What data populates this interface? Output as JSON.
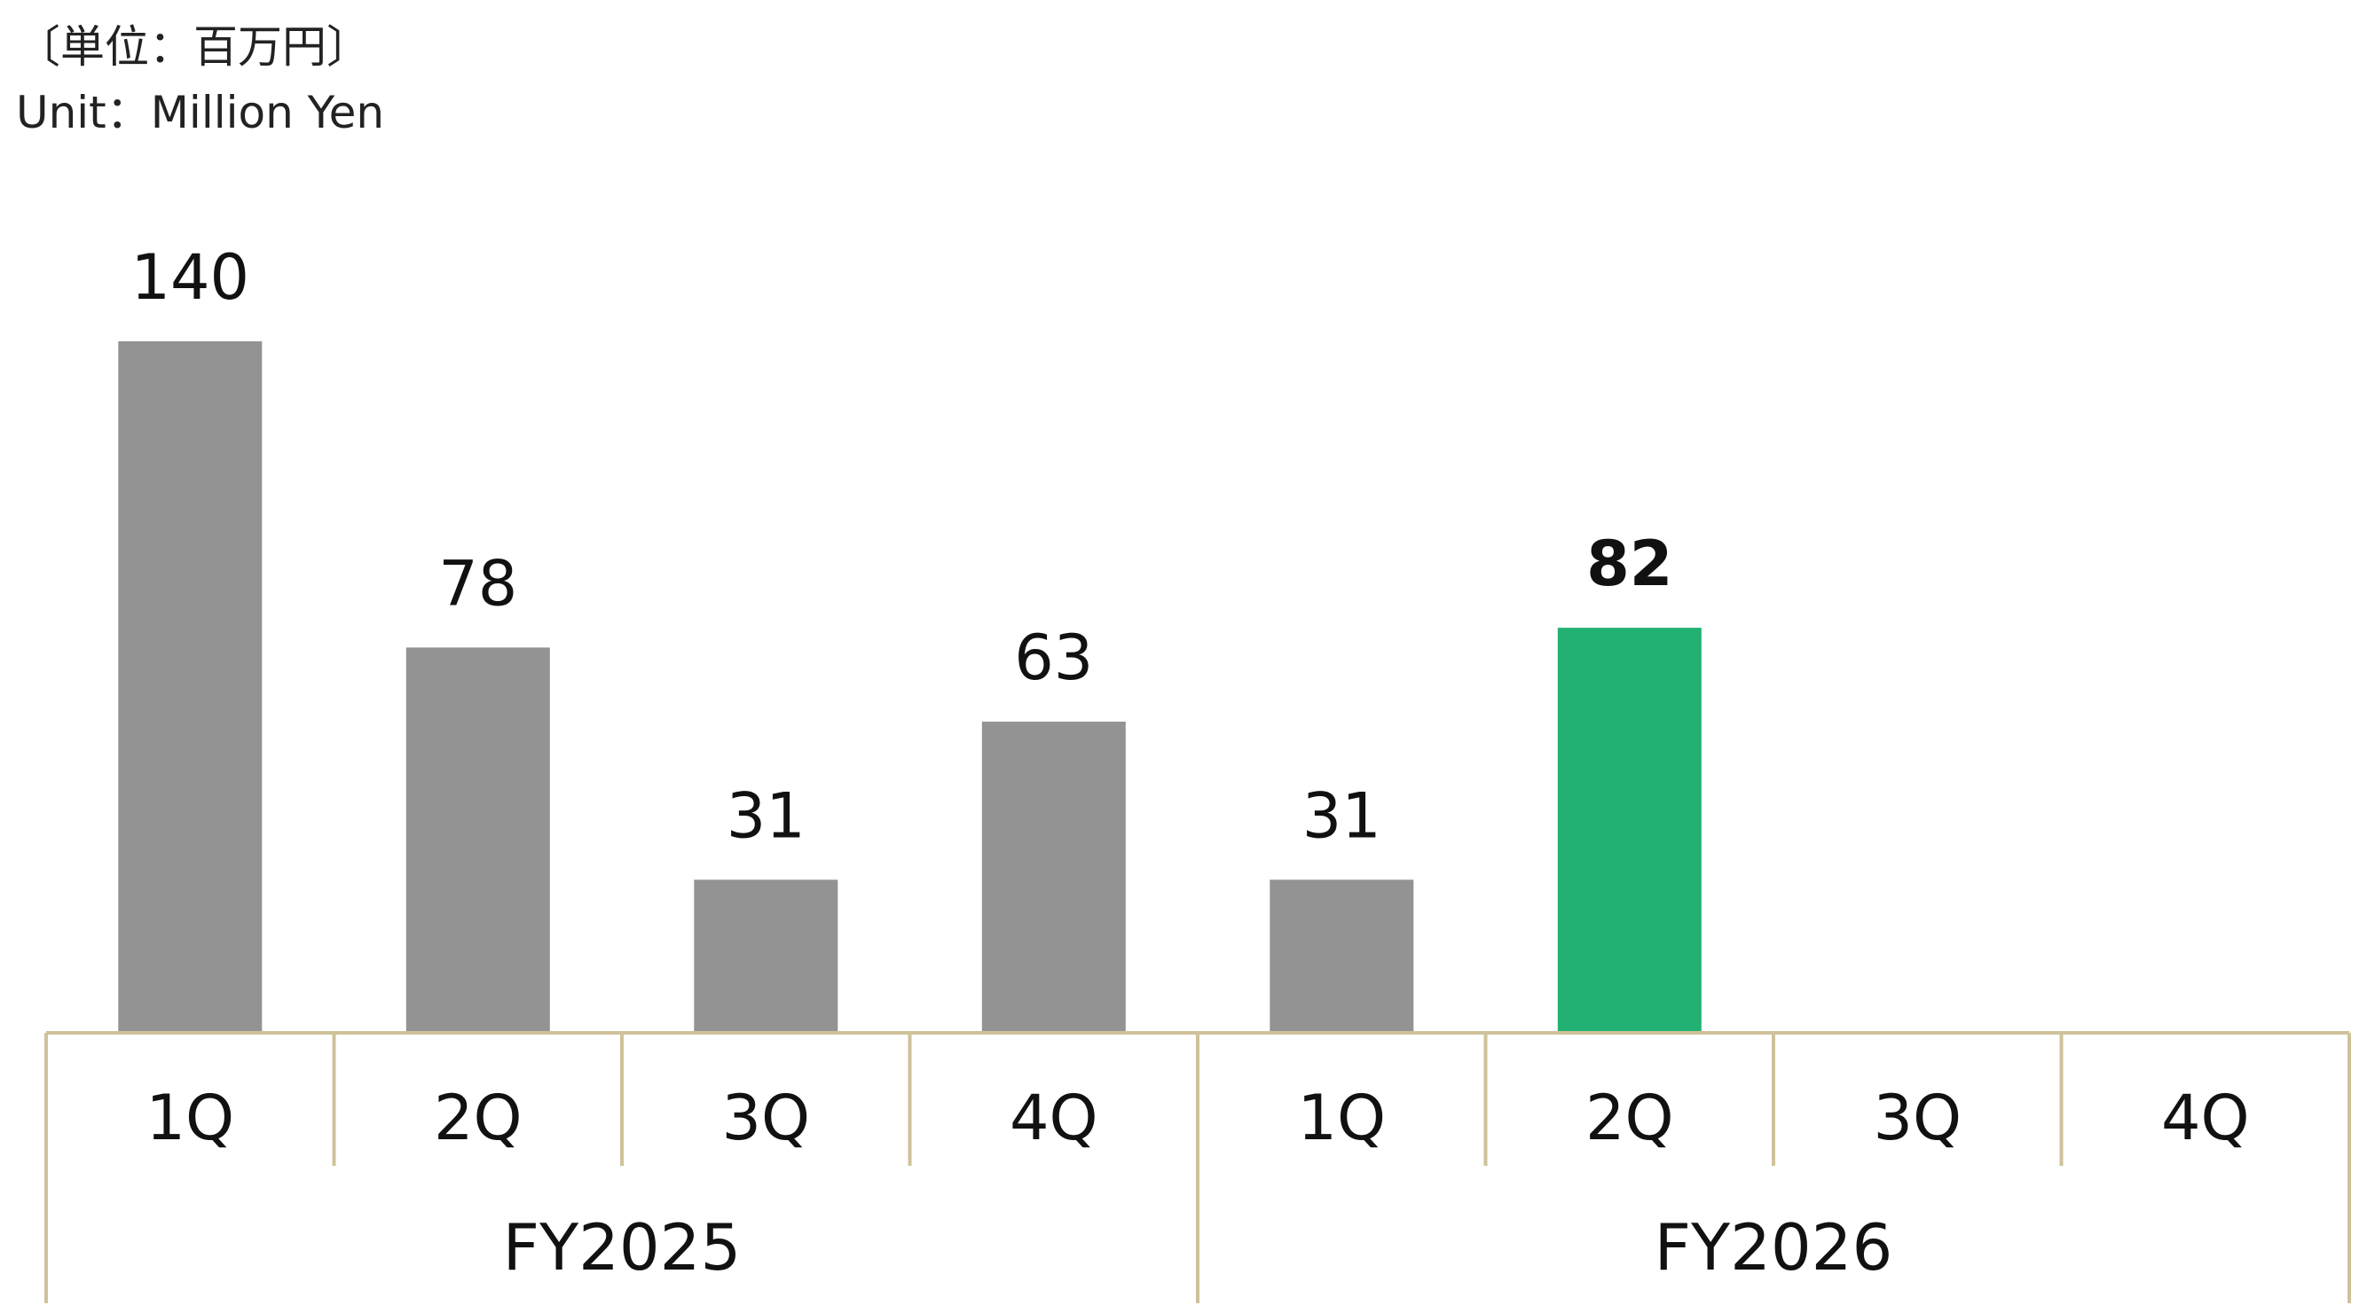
{
  "unit_note": {
    "ja": "〔単位：百万円〕",
    "en": "Unit：Million Yen"
  },
  "colors": {
    "bar": "#939393",
    "highlight": "#22b173",
    "axis": "#cfc29a",
    "text": "#111111"
  },
  "chart_data": {
    "type": "bar",
    "categories": [
      "1Q",
      "2Q",
      "3Q",
      "4Q",
      "1Q",
      "2Q",
      "3Q",
      "4Q"
    ],
    "groups": [
      {
        "label": "FY2025",
        "categories": [
          "1Q",
          "2Q",
          "3Q",
          "4Q"
        ]
      },
      {
        "label": "FY2026",
        "categories": [
          "1Q",
          "2Q",
          "3Q",
          "4Q"
        ]
      }
    ],
    "values": [
      140,
      78,
      31,
      63,
      31,
      82,
      null,
      null
    ],
    "data_labels": [
      "140",
      "78",
      "31",
      "63",
      "31",
      "82",
      "",
      ""
    ],
    "highlight_index": 5,
    "ylim": [
      0,
      140
    ],
    "grid": false,
    "title": "",
    "xlabel": "",
    "ylabel": ""
  }
}
